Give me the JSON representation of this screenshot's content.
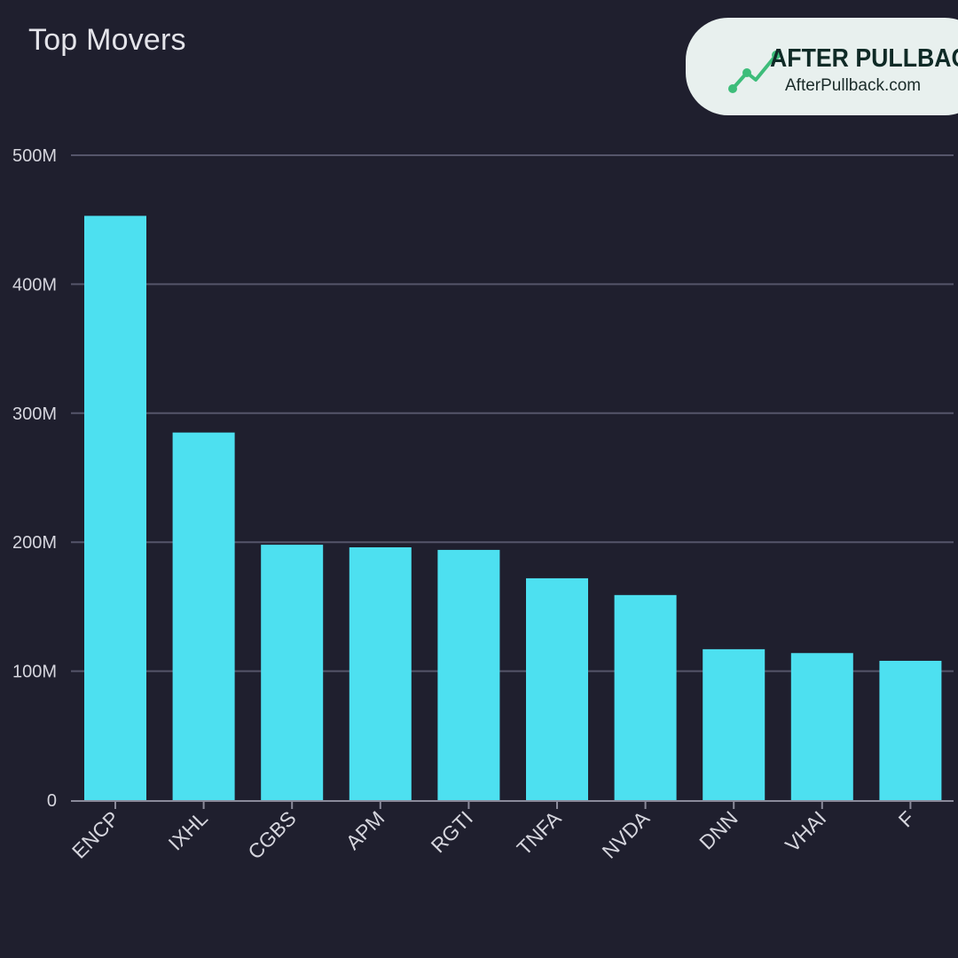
{
  "brand": {
    "name": "AFTER PULLBACK",
    "url": "AfterPullback.com",
    "logo_icon": "trend-line-icon",
    "logo_color": "#3dbd7a"
  },
  "colors": {
    "background": "#1f1f2e",
    "bar": "#4de0f0",
    "grid": "#55556a",
    "axis_text": "#d6d6de"
  },
  "chart_data": {
    "type": "bar",
    "title": "Top Movers",
    "categories": [
      "ENCP",
      "IXHL",
      "CGBS",
      "APM",
      "RGTI",
      "TNFA",
      "NVDA",
      "DNN",
      "VHAI",
      "F"
    ],
    "series": [
      {
        "values": [
          453000000,
          285000000,
          198000000,
          196000000,
          194000000,
          172000000,
          159000000,
          117000000,
          114000000,
          108000000
        ]
      }
    ],
    "ylim": [
      0,
      500000000
    ],
    "yticks": [
      0,
      100000000,
      200000000,
      300000000,
      400000000,
      500000000
    ],
    "ytick_labels": [
      "0",
      "100M",
      "200M",
      "300M",
      "400M",
      "500M"
    ],
    "xlabel": "",
    "ylabel": "",
    "grid": true,
    "legend": "none"
  }
}
